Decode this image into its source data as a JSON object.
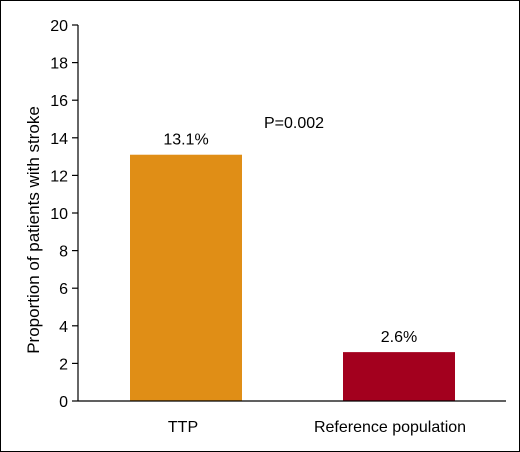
{
  "chart_data": {
    "type": "bar",
    "categories": [
      "TTP",
      "Reference population"
    ],
    "values": [
      13.1,
      2.6
    ],
    "data_labels": [
      "13.1%",
      "2.6%"
    ],
    "colors": [
      "#E08E16",
      "#A3001E"
    ],
    "title": "",
    "xlabel": "",
    "ylabel": "Proportion of patients with stroke",
    "ylim": [
      0,
      20
    ],
    "yticks": [
      0,
      2,
      4,
      6,
      8,
      10,
      12,
      14,
      16,
      18,
      20
    ],
    "grid": false,
    "legend": "none",
    "annotation": "P=0.002"
  }
}
